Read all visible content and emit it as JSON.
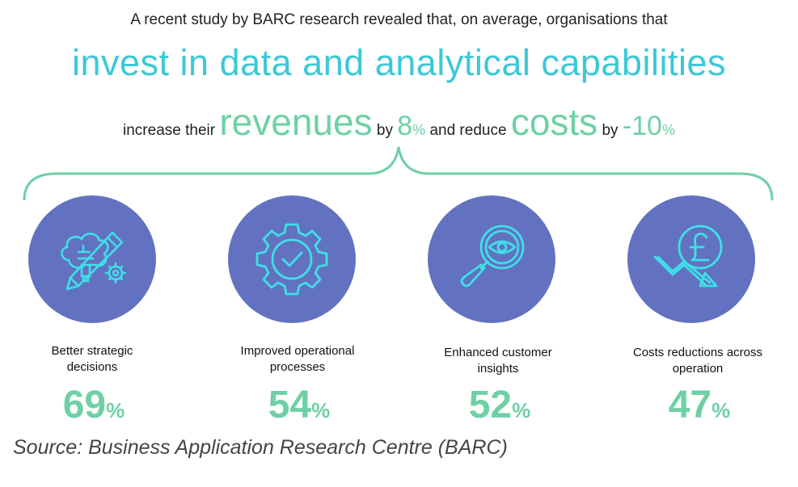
{
  "headline": {
    "intro": "A recent study by BARC research revealed that, on average, organisations that",
    "main": "invest in data and analytical capabilities",
    "increase_their": "increase their",
    "revenues": "revenues",
    "by1": "by",
    "revenue_value": "8",
    "pct1": "%",
    "and_reduce": "and reduce",
    "costs": "costs",
    "by2": "by",
    "cost_value": "-10",
    "pct2": "%"
  },
  "colors": {
    "circle": "#6272c0",
    "icon": "#3ee0e8",
    "accent": "#6fd0a6",
    "title": "#3cc8d8"
  },
  "benefits": [
    {
      "icon": "brain-pencil-gear-icon",
      "label_line1": "Better strategic",
      "label_line2": "decisions",
      "value": "69",
      "unit": "%"
    },
    {
      "icon": "gear-check-icon",
      "label_line1": "Improved operational",
      "label_line2": "processes",
      "value": "54",
      "unit": "%"
    },
    {
      "icon": "magnifier-eye-icon",
      "label_line1": "Enhanced customer",
      "label_line2": "insights",
      "value": "52",
      "unit": "%"
    },
    {
      "icon": "pound-down-arrow-icon",
      "label_line1": "Costs reductions across",
      "label_line2": "operation",
      "value": "47",
      "unit": "%"
    }
  ],
  "source": "Source: Business Application Research Centre (BARC)"
}
